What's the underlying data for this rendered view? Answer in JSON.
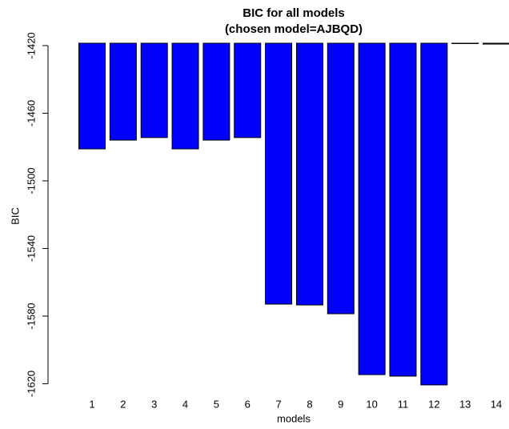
{
  "chart_data": {
    "type": "bar",
    "title": "BIC for all models",
    "subtitle": "(chosen model=AJBQD)",
    "x_label": "models",
    "y_label": "BIC",
    "categories": [
      1,
      2,
      3,
      4,
      5,
      6,
      7,
      8,
      9,
      10,
      11,
      12,
      13,
      14
    ],
    "values": [
      -1481.1,
      -1475.9,
      -1474.4,
      -1481.1,
      -1475.9,
      -1474.4,
      -1572.9,
      -1573.4,
      -1578.6,
      -1614.6,
      -1615.5,
      -1620.7,
      -1418.6,
      -1419.1
    ],
    "color": "#0000ff",
    "ylim": [
      -1621.2,
      -1418.6
    ],
    "yticks": [
      -1620,
      -1580,
      -1540,
      -1500,
      -1460,
      -1420
    ],
    "grid": false
  }
}
